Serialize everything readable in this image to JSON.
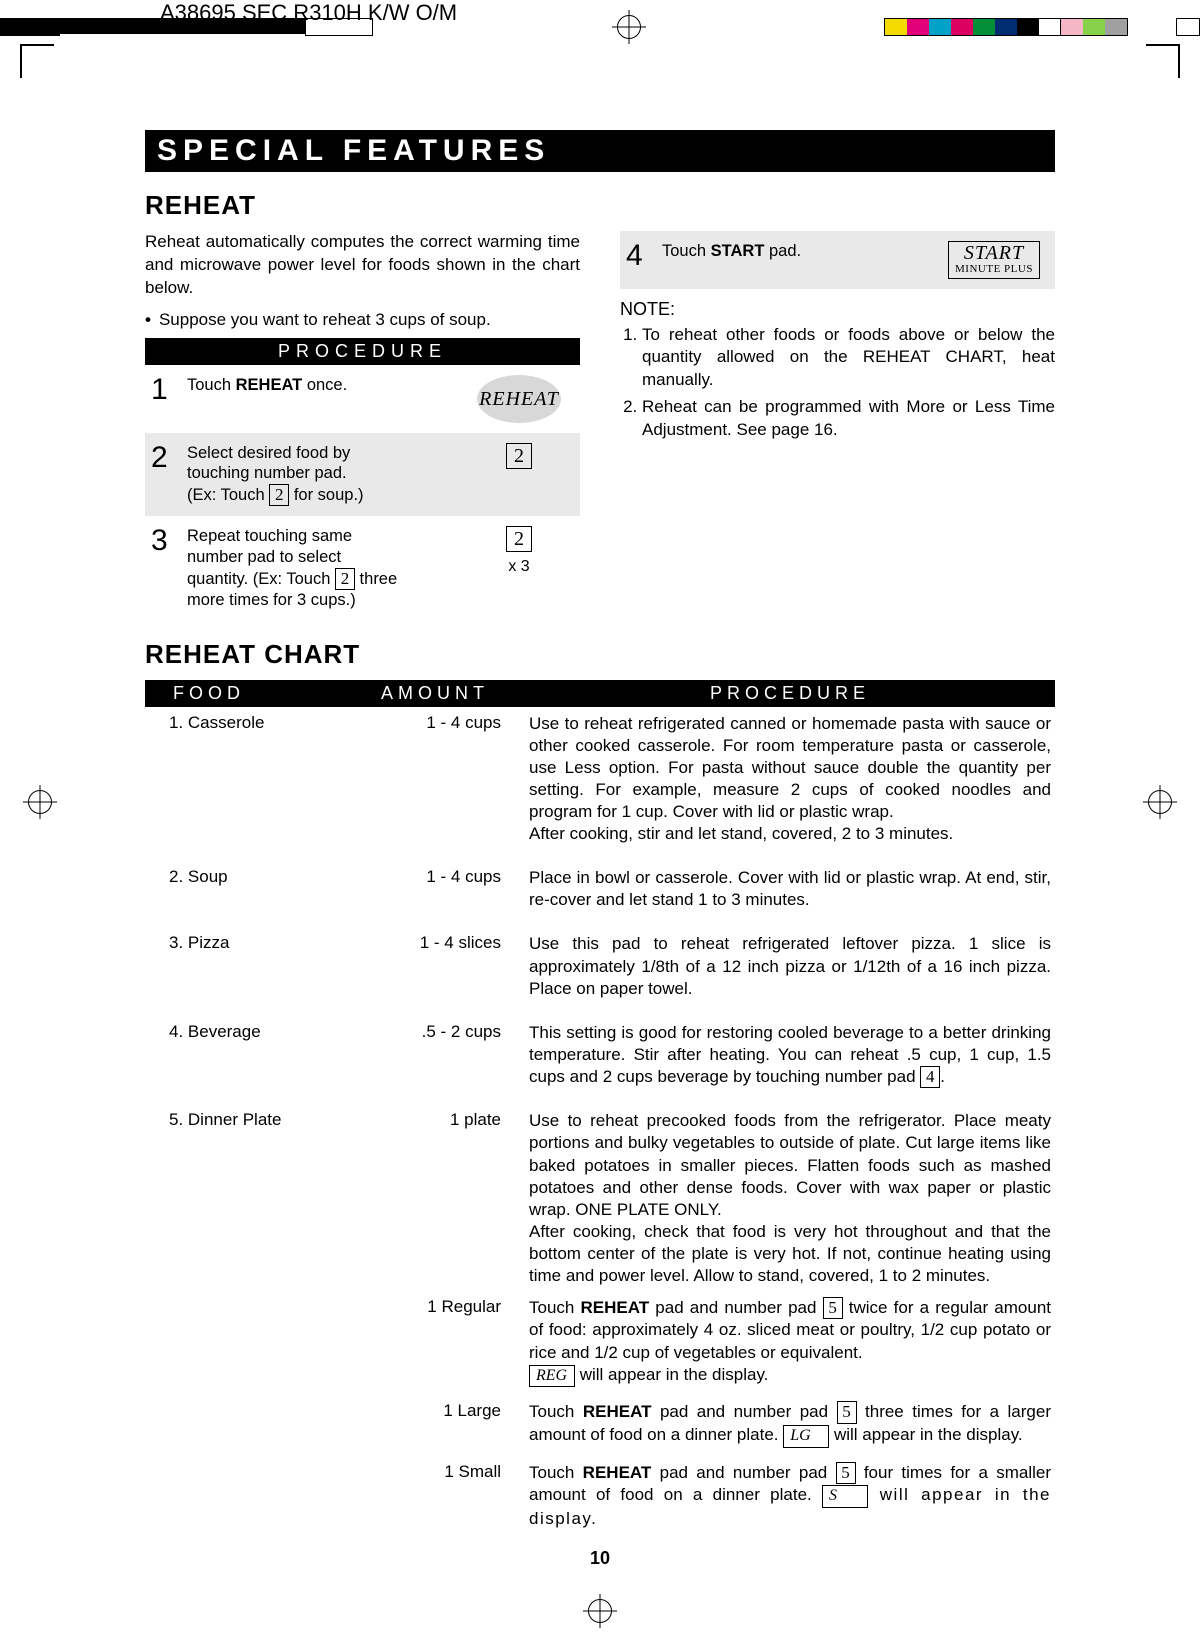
{
  "print": {
    "doc_title": "A38695 SEC R310H K/W O/M",
    "color_bar": [
      "#f6db00",
      "#e10078",
      "#00a2c8",
      "#dc0060",
      "#008e36",
      "#002d72",
      "#000000",
      "#ffffff",
      "#f5b7c6",
      "#87d24a",
      "#a0a0a0"
    ]
  },
  "banner": "SPECIAL FEATURES",
  "section1": "REHEAT",
  "intro": "Reheat automatically computes the correct warming time and microwave power level for foods shown in the chart below.",
  "bullet": "Suppose you want to reheat 3 cups of soup.",
  "proc_title": "PROCEDURE",
  "steps": {
    "s1": {
      "num": "1",
      "text_pre": "Touch ",
      "bold": "REHEAT",
      "text_post": " once.",
      "btn": "REHEAT"
    },
    "s2": {
      "num": "2",
      "line1": "Select desired food by",
      "line2a": "touching number pad.",
      "line3a": "(Ex: Touch ",
      "key": "2",
      "line3b": " for soup.)"
    },
    "s3": {
      "num": "3",
      "l1": "Repeat touching same",
      "l2": "number pad to select",
      "l3a": "quantity. (Ex: Touch ",
      "key": "2",
      "l3b": " three",
      "l4": "more times for 3 cups.)",
      "mult": "x 3"
    },
    "s4": {
      "num": "4",
      "pre": "Touch ",
      "bold": "START",
      "post": " pad.",
      "top": "START",
      "bot": "MINUTE PLUS"
    }
  },
  "note_head": "NOTE:",
  "notes": {
    "n1": "To reheat other foods or foods above or below the quantity allowed on the REHEAT CHART, heat manually.",
    "n2": "Reheat can be programmed with More or Less Time Adjustment. See page 16."
  },
  "section2": "REHEAT CHART",
  "chart_head": {
    "food": "FOOD",
    "amount": "AMOUNT",
    "proc": "PROCEDURE"
  },
  "rows": {
    "r1": {
      "food": "1.  Casserole",
      "amt": "1 - 4 cups",
      "p": "Use to reheat refrigerated canned or homemade pasta with sauce or other cooked casserole. For room temperature pasta or casserole, use Less option. For pasta without sauce double the quantity per setting. For example, measure 2 cups of cooked noodles and program for 1 cup. Cover with lid or plastic wrap.",
      "p2": "After cooking, stir and let stand, covered, 2 to 3 minutes."
    },
    "r2": {
      "food": "2.  Soup",
      "amt": "1 - 4 cups",
      "p": "Place in bowl or casserole. Cover with lid or plastic wrap. At end, stir, re-cover and let stand 1 to 3 minutes."
    },
    "r3": {
      "food": "3.  Pizza",
      "amt": "1 - 4 slices",
      "p": "Use this pad to reheat refrigerated leftover pizza. 1 slice is approximately 1/8th of a 12 inch pizza or 1/12th of a 16 inch pizza. Place on paper towel."
    },
    "r4": {
      "food": "4.  Beverage",
      "amt": ".5 - 2 cups",
      "p_a": "This setting is good for restoring cooled beverage to a better drinking temperature. Stir after heating. You can reheat .5 cup, 1 cup, 1.5 cups and 2 cups beverage by touching number pad ",
      "key": "4",
      "p_b": "."
    },
    "r5": {
      "food": "5.  Dinner Plate",
      "amt": "1 plate",
      "p": "Use to reheat precooked foods from the refrigerator. Place meaty portions and bulky vegetables to outside of plate. Cut large items like baked potatoes in smaller pieces. Flatten foods such as mashed potatoes and other dense foods. Cover with wax paper or plastic wrap. ONE PLATE ONLY.",
      "p2": "After cooking, check that food is very hot throughout and that the bottom center of the plate is very hot. If not, continue heating using time and power level. Allow to stand, covered, 1 to 2 minutes."
    },
    "r5a": {
      "amt": "1 Regular",
      "a": "Touch ",
      "b": "REHEAT",
      "c": " pad and number pad ",
      "key": "5",
      "d": " twice for a regular amount of food: approximately 4 oz. sliced meat or poultry, 1/2 cup potato or rice and 1/2 cup of vegetables or equivalent.",
      "disp": "REG",
      "e": " will appear in the display."
    },
    "r5b": {
      "amt": "1 Large",
      "a": "Touch ",
      "b": "REHEAT",
      "c": " pad and number pad ",
      "key": "5",
      "d": " three times for a larger amount of food on a dinner plate. ",
      "disp": "LG",
      "e": " will appear in the display."
    },
    "r5c": {
      "amt": "1 Small",
      "a": "Touch ",
      "b": "REHEAT",
      "c": " pad and number pad ",
      "key": "5",
      "d": " four times for a smaller amount of food on a dinner plate. ",
      "disp": "S",
      "e": " will appear in the display."
    }
  },
  "page_num": "10"
}
